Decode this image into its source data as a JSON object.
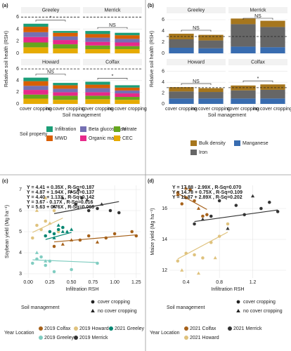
{
  "chart_data": [
    {
      "type": "bar",
      "stacked": true,
      "label": "(a)",
      "ylabel": "Relative soil health (RSH)",
      "xlabel": "Soil management",
      "categories": [
        "cover cropping",
        "no cover cropping"
      ],
      "facets": [
        {
          "title": "Greeley",
          "annotation": "*"
        },
        {
          "title": "Merrick",
          "annotation": "NS"
        },
        {
          "title": "Howard",
          "annotation": "NS"
        },
        {
          "title": "Colfax",
          "annotation": "*"
        }
      ],
      "ylim": [
        0,
        6.5
      ],
      "yticks": [
        0,
        2,
        4,
        6
      ],
      "reference_line": 6,
      "grid": true,
      "legend_title": "Soil property",
      "series": [
        {
          "name": "Infiltration",
          "color": "#1b9e77",
          "values": [
            [
              0.5,
              0.3
            ],
            [
              0.5,
              0.4
            ],
            [
              0.6,
              0.4
            ],
            [
              0.5,
              0.4
            ]
          ]
        },
        {
          "name": "MWD",
          "color": "#d95f02",
          "values": [
            [
              0.9,
              0.6
            ],
            [
              0.6,
              0.6
            ],
            [
              0.8,
              0.6
            ],
            [
              0.6,
              0.5
            ]
          ]
        },
        {
          "name": "Beta glucosidase",
          "color": "#7570b3",
          "values": [
            [
              0.8,
              0.6
            ],
            [
              0.7,
              0.6
            ],
            [
              0.7,
              0.6
            ],
            [
              0.7,
              0.5
            ]
          ]
        },
        {
          "name": "Organic matter",
          "color": "#e7298a",
          "values": [
            [
              0.9,
              0.7
            ],
            [
              0.6,
              0.6
            ],
            [
              0.8,
              0.6
            ],
            [
              0.6,
              0.6
            ]
          ]
        },
        {
          "name": "Nitrate",
          "color": "#66a61e",
          "values": [
            [
              0.8,
              0.7
            ],
            [
              0.6,
              0.5
            ],
            [
              0.7,
              0.7
            ],
            [
              0.6,
              0.5
            ]
          ]
        },
        {
          "name": "CEC",
          "color": "#e6ab02",
          "values": [
            [
              1.0,
              0.8
            ],
            [
              0.7,
              0.7
            ],
            [
              0.9,
              0.7
            ],
            [
              0.8,
              0.7
            ]
          ]
        }
      ]
    },
    {
      "type": "bar",
      "stacked": true,
      "label": "(b)",
      "ylabel": "Relative soil health (RSH)",
      "xlabel": "Soil management",
      "categories": [
        "cover cropping",
        "no cover cropping"
      ],
      "facets": [
        {
          "title": "Greeley",
          "annotation": "NS"
        },
        {
          "title": "Merrick",
          "annotation": "NS"
        },
        {
          "title": "Howard",
          "annotation": "NS"
        },
        {
          "title": "Colfax",
          "annotation": "*"
        }
      ],
      "ylim": [
        0,
        7
      ],
      "yticks": [
        0,
        2,
        4,
        6
      ],
      "reference_line": 3,
      "grid": true,
      "series": [
        {
          "name": "Bulk density",
          "color": "#a6761d",
          "values": [
            [
              1.0,
              1.0
            ],
            [
              1.0,
              1.1
            ],
            [
              0.8,
              0.7
            ],
            [
              0.9,
              1.0
            ]
          ]
        },
        {
          "name": "Iron",
          "color": "#666666",
          "values": [
            [
              1.5,
              1.4
            ],
            [
              4.0,
              3.6
            ],
            [
              1.3,
              1.2
            ],
            [
              1.5,
              1.6
            ]
          ]
        },
        {
          "name": "Manganese",
          "color": "#386cb0",
          "values": [
            [
              1.0,
              0.9
            ],
            [
              1.2,
              1.1
            ],
            [
              1.0,
              1.0
            ],
            [
              1.0,
              1.0
            ]
          ]
        }
      ]
    },
    {
      "type": "scatter",
      "label": "(c)",
      "xlabel": "Infiltration RSH",
      "ylabel": "Soybean yield (Mg ha⁻¹)",
      "xlim": [
        -0.05,
        1.3
      ],
      "ylim": [
        2.8,
        7.2
      ],
      "xticks": [
        {
          "value": 0,
          "label": "0.00"
        },
        {
          "value": 0.25,
          "label": "0.25"
        },
        {
          "value": 0.5,
          "label": "0.50"
        },
        {
          "value": 0.75,
          "label": "0.75"
        },
        {
          "value": 1,
          "label": "1.00"
        },
        {
          "value": 1.25,
          "label": "1.25"
        }
      ],
      "yticks": [
        3,
        4,
        5,
        6,
        7
      ],
      "grid": true,
      "shape_legend": {
        "title": "Soil management",
        "entries": [
          {
            "label": "cover cropping",
            "shape": "circle"
          },
          {
            "label": "no cover cropping",
            "shape": "triangle"
          }
        ]
      },
      "legend_title": "Year Location",
      "series": [
        {
          "name": "2019 Colfax",
          "color": "#a6611a",
          "x": [
            0.3,
            0.6,
            0.7,
            0.9,
            1.0,
            1.2,
            1.25,
            0.5,
            0.8,
            0.4
          ],
          "y": [
            4.3,
            4.6,
            4.8,
            4.7,
            4.9,
            5.0,
            4.8,
            4.6,
            4.5,
            4.4
          ],
          "shapes": [
            "circle",
            "circle",
            "circle",
            "circle",
            "circle",
            "circle",
            "circle",
            "triangle",
            "triangle",
            "triangle"
          ],
          "fit": {
            "intercept": 4.41,
            "slope": 0.35,
            "label": "Y = 4.41 + 0.35X , R-Sq=0.187"
          }
        },
        {
          "name": "2019 Howard",
          "color": "#dfc27d",
          "x": [
            0.05,
            0.1,
            0.15,
            0.2,
            0.3,
            0.35,
            0.1,
            0.2,
            0.25,
            0.4
          ],
          "y": [
            4.7,
            5.3,
            5.1,
            5.5,
            6.0,
            5.0,
            6.0,
            6.6,
            5.4,
            5.2
          ],
          "shapes": [
            "circle",
            "circle",
            "circle",
            "circle",
            "circle",
            "circle",
            "triangle",
            "triangle",
            "triangle",
            "triangle"
          ],
          "fit": {
            "intercept": 4.87,
            "slope": 1.94,
            "label": "Y = 4.87 + 1.94X , R-Sq=0.137"
          }
        },
        {
          "name": "2021 Greeley",
          "color": "#018571",
          "x": [
            0.2,
            0.25,
            0.3,
            0.35,
            0.4,
            0.45,
            0.3,
            0.35,
            0.4,
            0.5
          ],
          "y": [
            4.8,
            5.0,
            4.9,
            5.1,
            5.2,
            5.0,
            4.7,
            5.3,
            5.0,
            5.1
          ],
          "shapes": [
            "circle",
            "circle",
            "circle",
            "circle",
            "circle",
            "triangle",
            "triangle",
            "triangle",
            "triangle",
            "triangle"
          ],
          "fit": {
            "intercept": 4.4,
            "slope": 1.13,
            "label": "Y = 4.40 + 1.13X , R-Sq=0.142"
          }
        },
        {
          "name": "2019 Greeley",
          "color": "#80cdc1",
          "x": [
            0.05,
            0.1,
            0.15,
            0.2,
            0.25,
            0.3,
            0.5,
            0.8,
            0.1,
            0.2
          ],
          "y": [
            3.5,
            3.7,
            3.8,
            3.4,
            3.6,
            3.1,
            3.2,
            3.5,
            4.0,
            3.6
          ],
          "shapes": [
            "circle",
            "circle",
            "circle",
            "circle",
            "circle",
            "circle",
            "circle",
            "circle",
            "triangle",
            "triangle"
          ],
          "fit": {
            "intercept": 3.67,
            "slope": -0.17,
            "label": "Y = 3.67 - 0.17X , R-Sq=0.016"
          }
        },
        {
          "name": "2019 Merrick",
          "color": "#333333",
          "x": [
            0.55,
            0.62,
            0.7,
            0.8,
            0.95,
            1.05,
            0.3,
            0.4,
            0.5,
            0.58,
            0.68,
            0.85
          ],
          "y": [
            6.3,
            6.6,
            6.0,
            6.1,
            6.0,
            5.9,
            6.2,
            6.6,
            6.9,
            7.0,
            6.5,
            6.3
          ],
          "shapes": [
            "circle",
            "circle",
            "circle",
            "circle",
            "circle",
            "circle",
            "triangle",
            "triangle",
            "triangle",
            "triangle",
            "triangle",
            "triangle"
          ],
          "fit": {
            "intercept": 5.63,
            "slope": 0.76,
            "label": "Y = 5.63 + 0.76X , R-Sq=0.068"
          }
        }
      ]
    },
    {
      "type": "scatter",
      "label": "(d)",
      "xlabel": "Infiltration RSH",
      "ylabel": "Maize yield (Mg ha⁻¹)",
      "xlim": [
        0.2,
        1.6
      ],
      "ylim": [
        11.5,
        17.5
      ],
      "xticks": [
        0.4,
        0.8,
        1.2
      ],
      "yticks": [
        12,
        14,
        16
      ],
      "grid": true,
      "shape_legend": {
        "title": "Soil management",
        "entries": [
          {
            "label": "cover cropping",
            "shape": "circle"
          },
          {
            "label": "no cover cropping",
            "shape": "triangle"
          }
        ]
      },
      "legend_title": "Year Location",
      "series": [
        {
          "name": "2021 Colfax",
          "color": "#a6611a",
          "x": [
            0.3,
            0.35,
            0.4,
            0.45,
            0.5,
            0.6,
            0.65,
            0.3,
            0.4,
            0.55
          ],
          "y": [
            17.0,
            16.3,
            16.7,
            17.2,
            16.5,
            15.5,
            15.6,
            16.9,
            17.3,
            16.0
          ],
          "shapes": [
            "circle",
            "circle",
            "circle",
            "circle",
            "circle",
            "circle",
            "circle",
            "triangle",
            "triangle",
            "triangle"
          ],
          "fit": {
            "intercept": 17.88,
            "slope": -2.99,
            "label": "Y = 17.88 - 2.99X , R-Sq=0.070"
          }
        },
        {
          "name": "2021 Merrick",
          "color": "#333333",
          "x": [
            0.5,
            0.7,
            0.8,
            1.0,
            1.1,
            1.3,
            1.4,
            1.5,
            0.6,
            0.9,
            1.2
          ],
          "y": [
            15.0,
            15.5,
            16.5,
            16.2,
            15.6,
            16.0,
            16.4,
            15.8,
            15.3,
            14.7,
            16.8
          ],
          "shapes": [
            "circle",
            "circle",
            "circle",
            "circle",
            "circle",
            "circle",
            "circle",
            "circle",
            "triangle",
            "triangle",
            "triangle"
          ],
          "fit": {
            "intercept": 14.78,
            "slope": 0.75,
            "label": "Y = 14.78 + 0.75X , R-Sq=0.109"
          }
        },
        {
          "name": "2021 Howard",
          "color": "#dfc27d",
          "x": [
            0.3,
            0.4,
            0.5,
            0.6,
            0.7,
            0.8,
            0.9,
            0.35,
            0.55,
            0.75
          ],
          "y": [
            12.6,
            13.1,
            13.0,
            12.8,
            13.8,
            14.2,
            15.0,
            12.0,
            11.8,
            12.8
          ],
          "shapes": [
            "circle",
            "circle",
            "circle",
            "circle",
            "circle",
            "circle",
            "circle",
            "triangle",
            "triangle",
            "triangle"
          ],
          "fit": {
            "intercept": 11.87,
            "slope": 2.89,
            "label": "Y = 11.87 + 2.89X , R-Sq=0.202"
          }
        }
      ]
    }
  ]
}
